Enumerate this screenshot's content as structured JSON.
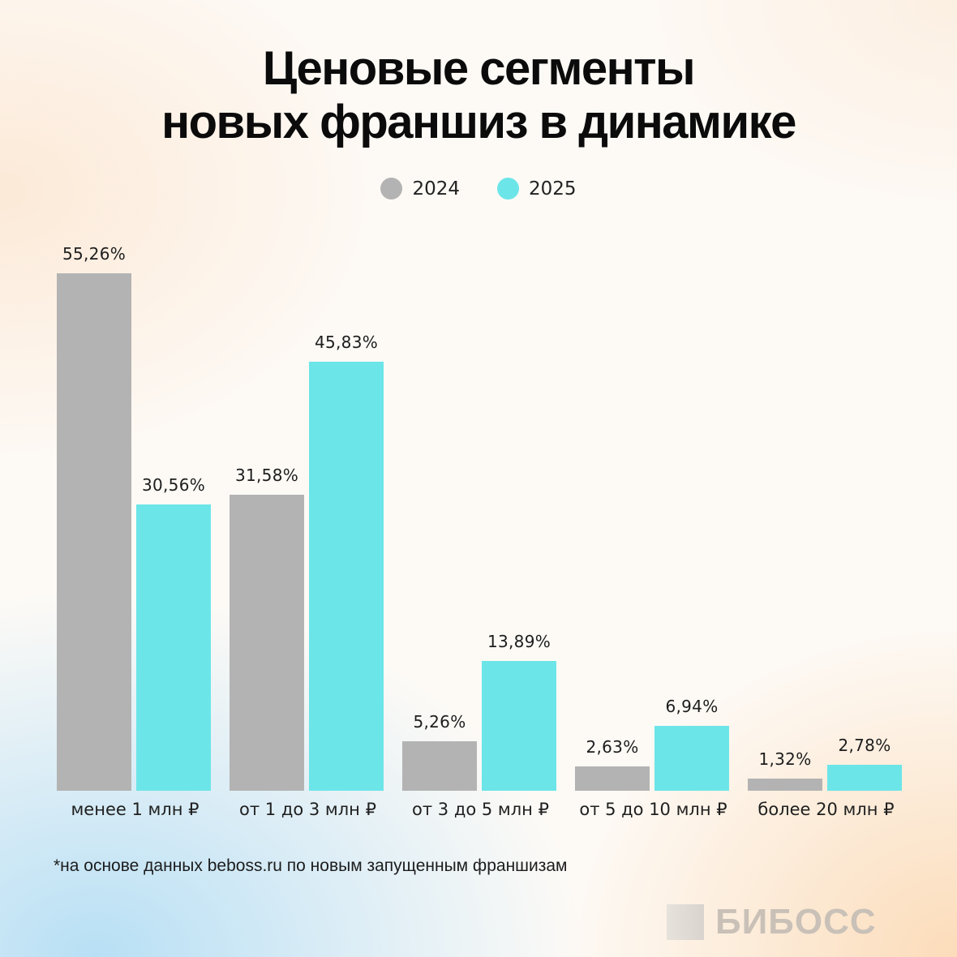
{
  "title": {
    "line1": "Ценовые сегменты",
    "line2": "новых франшиз в динамике"
  },
  "legend": [
    {
      "label": "2024",
      "color": "#b3b3b3"
    },
    {
      "label": "2025",
      "color": "#6ce5e8"
    }
  ],
  "categories": [
    "менее 1 млн ₽",
    "от 1 до 3 млн ₽",
    "от 3 до 5 млн ₽",
    "от 5 до 10 млн ₽",
    "более 20 млн ₽"
  ],
  "labels": {
    "2024": [
      "55,26%",
      "31,58%",
      "5,26%",
      "2,63%",
      "1,32%"
    ],
    "2025": [
      "30,56%",
      "45,83%",
      "13,89%",
      "6,94%",
      "2,78%"
    ]
  },
  "footnote": "*на основе данных beboss.ru по новым запущенным франшизам",
  "logo": "БИБОСС",
  "chart_data": {
    "type": "bar",
    "title": "Ценовые сегменты новых франшиз в динамике",
    "categories": [
      "менее 1 млн ₽",
      "от 1 до 3 млн ₽",
      "от 3 до 5 млн ₽",
      "от 5 до 10 млн ₽",
      "более 20 млн ₽"
    ],
    "series": [
      {
        "name": "2024",
        "color": "#b3b3b3",
        "values": [
          55.26,
          31.58,
          5.26,
          2.63,
          1.32
        ]
      },
      {
        "name": "2025",
        "color": "#6ce5e8",
        "values": [
          30.56,
          45.83,
          13.89,
          6.94,
          2.78
        ]
      }
    ],
    "xlabel": "",
    "ylabel": "",
    "unit": "%",
    "ylim": [
      0,
      60
    ],
    "grid": false,
    "axis_visible": false,
    "data_labels": true,
    "legend_position": "top-center",
    "footnote": "*на основе данных beboss.ru по новым запущенным франшизам"
  }
}
